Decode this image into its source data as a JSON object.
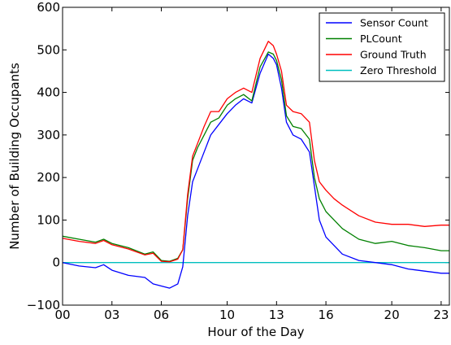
{
  "chart_data": {
    "type": "line",
    "title": "",
    "xlabel": "Hour of the Day",
    "ylabel": "Number of Building Occupants",
    "xlim": [
      0,
      23.5
    ],
    "ylim": [
      -100,
      600
    ],
    "x_ticks": [
      0,
      3,
      6,
      10,
      13,
      16,
      20,
      23
    ],
    "x_tick_labels": [
      "00",
      "03",
      "06",
      "10",
      "13",
      "16",
      "20",
      "23"
    ],
    "y_ticks": [
      -100,
      0,
      100,
      200,
      300,
      400,
      500,
      600
    ],
    "y_tick_labels": [
      "−100",
      "0",
      "100",
      "200",
      "300",
      "400",
      "500",
      "600"
    ],
    "grid": false,
    "legend_position": "top-right",
    "series": [
      {
        "name": "Sensor Count",
        "color": "#0000ff",
        "x": [
          0,
          1,
          2,
          2.5,
          3,
          4,
          5,
          5.5,
          6,
          6.5,
          7,
          7.3,
          7.6,
          7.9,
          8.2,
          8.6,
          9,
          9.5,
          10,
          10.5,
          11,
          11.5,
          12,
          12.5,
          12.8,
          13,
          13.3,
          13.6,
          14,
          14.5,
          15,
          15.3,
          15.6,
          16,
          16.5,
          17,
          18,
          19,
          20,
          21,
          22,
          23,
          23.5
        ],
        "y": [
          0,
          -8,
          -12,
          -5,
          -18,
          -30,
          -35,
          -50,
          -55,
          -60,
          -50,
          -10,
          110,
          190,
          220,
          260,
          300,
          325,
          350,
          370,
          385,
          375,
          445,
          490,
          480,
          465,
          410,
          330,
          300,
          290,
          260,
          180,
          100,
          60,
          40,
          20,
          5,
          0,
          -5,
          -15,
          -20,
          -25,
          -25
        ]
      },
      {
        "name": "PLCount",
        "color": "#008000",
        "x": [
          0,
          1,
          2,
          2.5,
          3,
          4,
          5,
          5.5,
          6,
          6.5,
          7,
          7.3,
          7.6,
          7.9,
          8.2,
          8.6,
          9,
          9.5,
          10,
          10.5,
          11,
          11.5,
          12,
          12.5,
          12.8,
          13,
          13.3,
          13.6,
          14,
          14.5,
          15,
          15.3,
          15.6,
          16,
          16.5,
          17,
          18,
          19,
          20,
          21,
          22,
          23,
          23.5
        ],
        "y": [
          62,
          55,
          48,
          55,
          45,
          35,
          20,
          25,
          5,
          3,
          10,
          30,
          150,
          240,
          270,
          300,
          330,
          340,
          370,
          385,
          395,
          380,
          460,
          495,
          490,
          475,
          430,
          345,
          320,
          315,
          290,
          200,
          150,
          120,
          100,
          80,
          55,
          45,
          50,
          40,
          35,
          28,
          28
        ]
      },
      {
        "name": "Ground Truth",
        "color": "#ff0000",
        "x": [
          0,
          1,
          2,
          2.5,
          3,
          4,
          5,
          5.5,
          6,
          6.5,
          7,
          7.3,
          7.6,
          7.9,
          8.2,
          8.6,
          9,
          9.5,
          10,
          10.5,
          11,
          11.5,
          12,
          12.5,
          12.8,
          13,
          13.3,
          13.6,
          14,
          14.5,
          15,
          15.3,
          15.6,
          16,
          16.5,
          17,
          18,
          19,
          20,
          21,
          22,
          23,
          23.5
        ],
        "y": [
          57,
          50,
          45,
          52,
          42,
          32,
          18,
          22,
          3,
          2,
          8,
          30,
          160,
          250,
          280,
          320,
          355,
          355,
          385,
          400,
          410,
          400,
          480,
          520,
          510,
          490,
          450,
          370,
          355,
          350,
          330,
          240,
          190,
          170,
          150,
          135,
          110,
          95,
          90,
          90,
          85,
          88,
          88
        ]
      },
      {
        "name": "Zero Threshold",
        "color": "#00bfbf",
        "x": [
          0,
          23.5
        ],
        "y": [
          0,
          0
        ]
      }
    ]
  }
}
